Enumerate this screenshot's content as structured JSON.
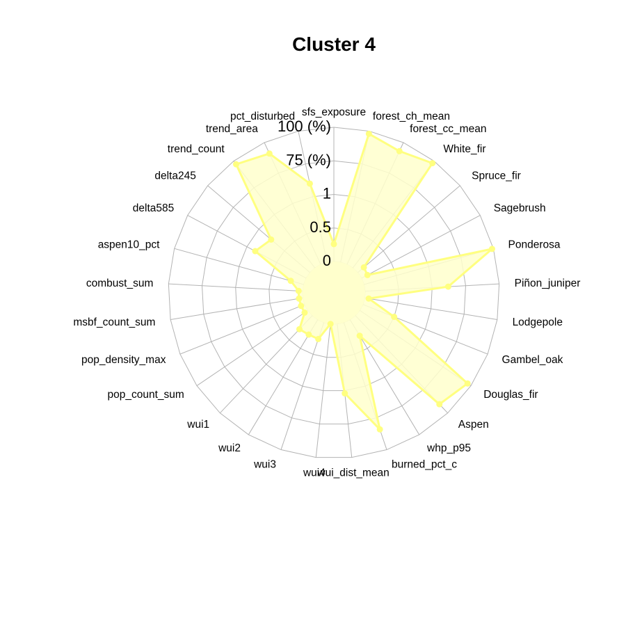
{
  "chart_data": {
    "type": "radar",
    "title": "Cluster 4",
    "axis_labels": [
      "sfs_exposure",
      "forest_ch_mean",
      "forest_cc_mean",
      "White_fir",
      "Spruce_fir",
      "Sagebrush",
      "Ponderosa",
      "Piñon_juniper",
      "Lodgepole",
      "Gambel_oak",
      "Douglas_fir",
      "Aspen",
      "whp_p95",
      "burned_pct_c",
      "wui_dist_mean",
      "wui4",
      "wui3",
      "wui2",
      "wui1",
      "pop_count_sum",
      "pop_density_max",
      "msbf_count_sum",
      "combust_sum",
      "aspen10_pct",
      "delta585",
      "delta245",
      "trend_count",
      "trend_area",
      "pct_disturbed"
    ],
    "ring_labels": [
      "0",
      "0.5",
      "1",
      "75 (%)",
      "100 (%)"
    ],
    "values": [
      0.13,
      0.98,
      0.93,
      0.98,
      0.06,
      0.05,
      0.99,
      0.62,
      0.03,
      0.25,
      0.97,
      0.91,
      0.14,
      0.84,
      0.52,
      0.0,
      0.13,
      0.13,
      0.14,
      0.03,
      0.03,
      0.03,
      0.03,
      0.1,
      0.43,
      0.38,
      0.97,
      0.91,
      0.6
    ],
    "ylim": [
      0,
      1
    ],
    "fill_color": "#ffffcc",
    "line_color": "#ffff80",
    "grid_color": "#b3b3b3",
    "legend": "none"
  }
}
